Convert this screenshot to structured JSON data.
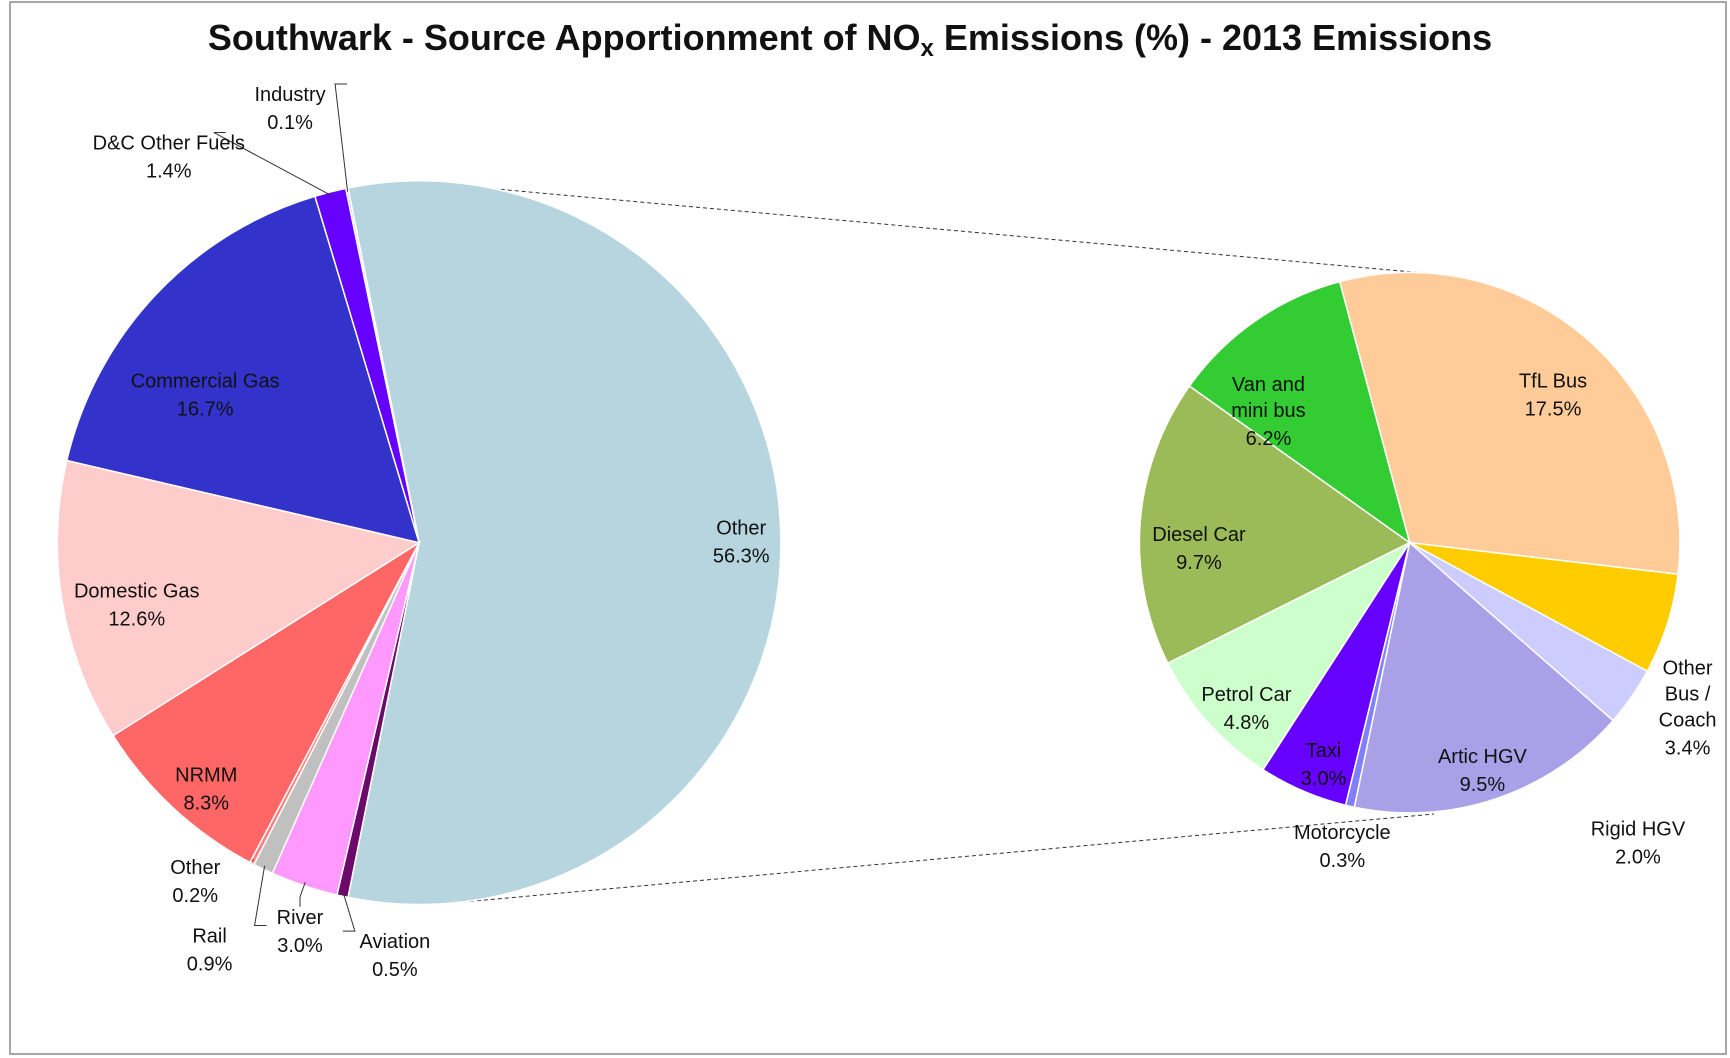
{
  "title": [
    "Southwark - Source Apportionment of NO",
    "x",
    " Emissions (%) - 2013 Emissions"
  ],
  "chart_data": [
    {
      "type": "pie",
      "categories": [
        "Other",
        "Aviation",
        "River",
        "Rail",
        "Other",
        "NRMM",
        "Domestic Gas",
        "Commercial Gas",
        "D&C Other Fuels",
        "Industry"
      ],
      "values": [
        56.3,
        0.5,
        3.0,
        0.9,
        0.2,
        8.3,
        12.6,
        16.7,
        1.4,
        0.1
      ],
      "value_labels": [
        "56.3%",
        "0.5%",
        "3.0%",
        "0.9%",
        "0.2%",
        "8.3%",
        "12.6%",
        "16.7%",
        "1.4%",
        "0.1%"
      ],
      "colors": [
        "#b7d5df",
        "#6b0a6b",
        "#ff99ff",
        "#c0c0c0",
        "#ff8080",
        "#ff6666",
        "#ffcccc",
        "#3333cc",
        "#6600ff",
        "#c8c8ff"
      ]
    },
    {
      "type": "pie",
      "categories": [
        "TfL Bus",
        "Other Bus / Coach",
        "Rigid HGV",
        "Artic HGV",
        "Motorcycle",
        "Taxi",
        "Petrol Car",
        "Diesel Car",
        "Van and mini bus"
      ],
      "values": [
        17.5,
        3.4,
        2.0,
        9.5,
        0.3,
        3.0,
        4.8,
        9.7,
        6.2
      ],
      "value_labels": [
        "17.5%",
        "3.4%",
        "2.0%",
        "9.5%",
        "0.3%",
        "3.0%",
        "4.8%",
        "9.7%",
        "6.2%"
      ],
      "colors": [
        "#ffcc99",
        "#ffcc00",
        "#ccccff",
        "#a9a0e8",
        "#8080ff",
        "#6600ff",
        "#ccffcc",
        "#9bbb59",
        "#33cc33"
      ]
    }
  ]
}
